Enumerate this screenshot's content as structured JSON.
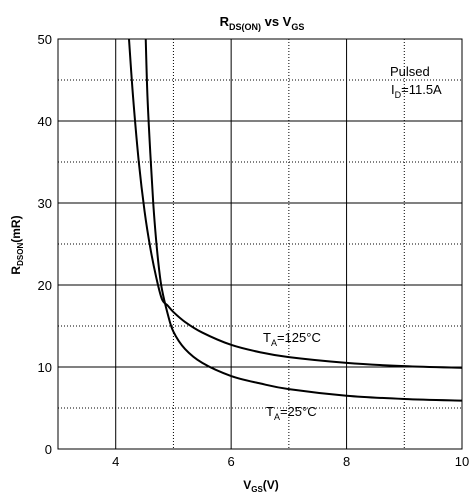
{
  "chart_data": {
    "type": "line",
    "title": {
      "main": "R",
      "main_sub": "DS(ON)",
      "mid": " vs V",
      "mid_sub": "GS"
    },
    "xlabel": {
      "main": "V",
      "sub": "GS",
      "tail": "(V)"
    },
    "ylabel": {
      "main": "R",
      "sub": "DSON",
      "tail": "(mR)"
    },
    "xlim": [
      3,
      10
    ],
    "ylim": [
      0,
      50
    ],
    "x_ticks": [
      4,
      6,
      8,
      10
    ],
    "y_ticks": [
      0,
      10,
      20,
      30,
      40,
      50
    ],
    "grid": true,
    "conditions": {
      "line1": "Pulsed",
      "line2_main": "I",
      "line2_sub": "D",
      "line2_tail": "=11.5A"
    },
    "series": [
      {
        "name": {
          "main": "T",
          "sub": "A",
          "tail": "=125°C"
        },
        "x": [
          4.23,
          4.3,
          4.4,
          4.5,
          4.6,
          4.7,
          4.8,
          4.9,
          5.0,
          5.2,
          5.5,
          6.0,
          6.5,
          7.0,
          8.0,
          9.0,
          10.0
        ],
        "y": [
          50,
          43,
          35,
          29,
          24.5,
          21,
          18.3,
          17.5,
          16.7,
          15.5,
          14.2,
          12.7,
          11.8,
          11.2,
          10.5,
          10.1,
          9.9
        ]
      },
      {
        "name": {
          "main": "T",
          "sub": "A",
          "tail": "=25°C"
        },
        "x": [
          4.52,
          4.55,
          4.6,
          4.65,
          4.7,
          4.75,
          4.8,
          4.9,
          5.0,
          5.2,
          5.5,
          6.0,
          6.5,
          7.0,
          8.0,
          9.0,
          10.0
        ],
        "y": [
          50,
          43,
          36,
          30,
          25.5,
          22,
          19.5,
          16.5,
          14.3,
          12.2,
          10.5,
          8.9,
          8.0,
          7.3,
          6.5,
          6.1,
          5.9
        ]
      }
    ]
  }
}
